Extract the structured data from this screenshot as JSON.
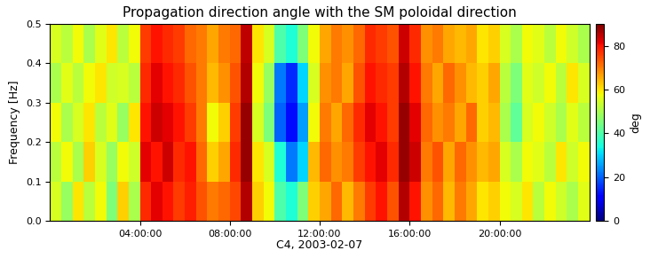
{
  "chart_data": {
    "type": "heatmap",
    "title": "Propagation direction angle with the SM poloidal direction",
    "x_label": "C4, 2003-02-07",
    "y_label": "Frequency [Hz]",
    "x_bins": [
      0,
      0.5,
      1,
      1.5,
      2,
      2.5,
      3,
      3.5,
      4,
      4.5,
      5,
      5.5,
      6,
      6.5,
      7,
      7.5,
      8,
      8.5,
      9,
      9.5,
      10,
      10.5,
      11,
      11.5,
      12,
      12.5,
      13,
      13.5,
      14,
      14.5,
      15,
      15.5,
      16,
      16.5,
      17,
      17.5,
      18,
      18.5,
      19,
      19.5,
      20,
      20.5,
      21,
      21.5,
      22,
      22.5,
      23,
      23.5,
      24
    ],
    "y_bins": [
      0.0,
      0.1,
      0.2,
      0.3,
      0.4,
      0.5
    ],
    "cells": [
      [
        55,
        48,
        60,
        52,
        58,
        45,
        62,
        50,
        78,
        82,
        80,
        76,
        79,
        74,
        70,
        72,
        75,
        86,
        62,
        58,
        40,
        35,
        45,
        62,
        66,
        72,
        64,
        70,
        76,
        80,
        74,
        86,
        80,
        68,
        72,
        64,
        70,
        66,
        60,
        62,
        58,
        55,
        60,
        52,
        58,
        54,
        50,
        56
      ],
      [
        52,
        58,
        50,
        62,
        55,
        48,
        58,
        54,
        82,
        80,
        84,
        78,
        80,
        72,
        62,
        66,
        78,
        88,
        60,
        55,
        35,
        22,
        30,
        64,
        72,
        68,
        70,
        76,
        80,
        82,
        78,
        88,
        84,
        70,
        74,
        66,
        72,
        68,
        64,
        66,
        55,
        50,
        58,
        56,
        52,
        60,
        54,
        58
      ],
      [
        58,
        50,
        55,
        60,
        52,
        56,
        48,
        60,
        80,
        84,
        82,
        80,
        76,
        70,
        58,
        62,
        76,
        88,
        55,
        45,
        20,
        12,
        25,
        58,
        70,
        66,
        72,
        78,
        82,
        80,
        76,
        88,
        82,
        72,
        68,
        70,
        66,
        72,
        62,
        64,
        50,
        42,
        55,
        58,
        54,
        50,
        56,
        52
      ],
      [
        50,
        56,
        52,
        58,
        60,
        54,
        55,
        52,
        78,
        82,
        80,
        78,
        74,
        70,
        64,
        68,
        74,
        86,
        58,
        48,
        22,
        15,
        30,
        55,
        68,
        70,
        66,
        74,
        80,
        78,
        76,
        86,
        80,
        70,
        66,
        72,
        68,
        64,
        62,
        66,
        52,
        45,
        56,
        54,
        58,
        52,
        60,
        55
      ],
      [
        55,
        52,
        58,
        50,
        56,
        60,
        52,
        58,
        76,
        80,
        78,
        76,
        72,
        70,
        66,
        70,
        72,
        85,
        60,
        55,
        40,
        35,
        45,
        58,
        66,
        70,
        68,
        72,
        78,
        76,
        74,
        84,
        78,
        68,
        70,
        66,
        64,
        66,
        60,
        62,
        55,
        50,
        58,
        56,
        52,
        58,
        54,
        50
      ]
    ],
    "xlim": [
      0,
      24
    ],
    "xticks": [
      {
        "value": 4,
        "label": "04:00:00"
      },
      {
        "value": 8,
        "label": "08:00:00"
      },
      {
        "value": 12,
        "label": "12:00:00"
      },
      {
        "value": 16,
        "label": "16:00:00"
      },
      {
        "value": 20,
        "label": "20:00:00"
      }
    ],
    "ylim": [
      0.0,
      0.5
    ],
    "yticks": [
      0.0,
      0.1,
      0.2,
      0.3,
      0.4,
      0.5
    ],
    "colorbar_range": [
      0,
      90
    ],
    "colorbar_ticks": [
      0,
      20,
      40,
      60,
      80
    ],
    "colorbar_label": "deg"
  }
}
